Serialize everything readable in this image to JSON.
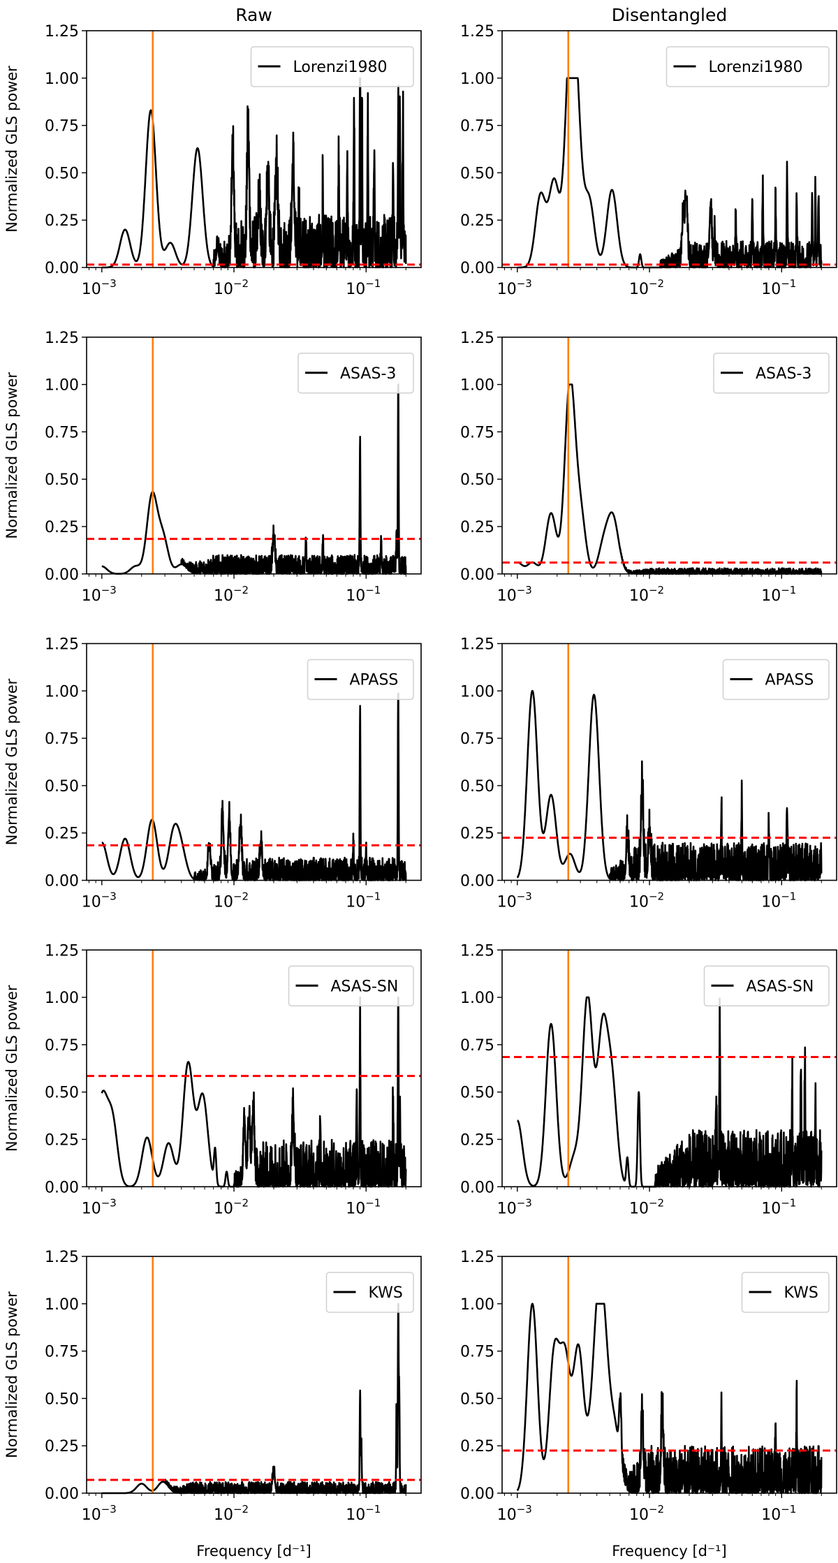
{
  "chart_data": {
    "type": "line",
    "layout": "5 rows x 2 columns",
    "column_titles": [
      "Raw",
      "Disentangled"
    ],
    "xlabel": "Frequency [d⁻¹]",
    "ylabel": "Normalized GLS power",
    "xscale": "log",
    "xlim": [
      0.000767,
      0.2606
    ],
    "ylim": [
      0,
      1.25
    ],
    "yticks": [
      "0.00",
      "0.25",
      "0.50",
      "0.75",
      "1.00",
      "1.25"
    ],
    "xticks": [
      {
        "base": "10",
        "exp": "−3"
      },
      {
        "base": "10",
        "exp": "−2"
      },
      {
        "base": "10",
        "exp": "−1"
      }
    ],
    "data_range": [
      0.001,
      0.2
    ],
    "reference_frequency": 0.00243,
    "colors": {
      "series": "#000000",
      "reference": "#ff7f0e",
      "threshold": "#ff0000"
    },
    "legend_placement": "top-right",
    "panels": [
      {
        "column": "Raw",
        "legend": "Lorenzi1980",
        "threshold": 0.015,
        "noise": {
          "start": 0.007,
          "level": 0.28
        },
        "peaks": [
          [
            0.0015,
            0.2
          ],
          [
            0.00235,
            0.83
          ],
          [
            0.0033,
            0.13
          ],
          [
            0.0053,
            0.63
          ],
          [
            0.0075,
            0.09
          ],
          [
            0.0098,
            0.59
          ],
          [
            0.0128,
            0.66
          ],
          [
            0.0155,
            0.28
          ],
          [
            0.018,
            0.45
          ],
          [
            0.021,
            0.47
          ],
          [
            0.028,
            0.5
          ],
          [
            0.031,
            0.38
          ],
          [
            0.047,
            0.37
          ],
          [
            0.062,
            0.46
          ],
          [
            0.072,
            0.55
          ],
          [
            0.081,
            0.82
          ],
          [
            0.09,
            1.0
          ],
          [
            0.093,
            0.89
          ],
          [
            0.103,
            0.68
          ],
          [
            0.115,
            0.53
          ],
          [
            0.16,
            0.48
          ],
          [
            0.175,
            0.78
          ],
          [
            0.18,
            0.84
          ],
          [
            0.19,
            0.7
          ]
        ]
      },
      {
        "column": "Disentangled",
        "legend": "Lorenzi1980",
        "threshold": 0.015,
        "noise": {
          "start": 0.012,
          "level": 0.14
        },
        "peaks": [
          [
            0.0015,
            0.38
          ],
          [
            0.0019,
            0.45
          ],
          [
            0.0025,
            1.0
          ],
          [
            0.0028,
            0.7
          ],
          [
            0.0035,
            0.35
          ],
          [
            0.0052,
            0.41
          ],
          [
            0.0085,
            0.07
          ],
          [
            0.018,
            0.26
          ],
          [
            0.019,
            0.37
          ],
          [
            0.029,
            0.3
          ],
          [
            0.031,
            0.17
          ],
          [
            0.045,
            0.23
          ],
          [
            0.06,
            0.36
          ],
          [
            0.072,
            0.42
          ],
          [
            0.09,
            0.33
          ],
          [
            0.11,
            0.45
          ],
          [
            0.13,
            0.3
          ],
          [
            0.17,
            0.27
          ],
          [
            0.18,
            0.39
          ],
          [
            0.19,
            0.35
          ]
        ]
      },
      {
        "column": "Raw",
        "legend": "ASAS-3",
        "threshold": 0.185,
        "noise": {
          "start": 0.004,
          "level": 0.1
        },
        "peaks": [
          [
            0.001,
            0.04
          ],
          [
            0.0018,
            0.04
          ],
          [
            0.0024,
            0.41
          ],
          [
            0.0029,
            0.19
          ],
          [
            0.004,
            0.05
          ],
          [
            0.02,
            0.17
          ],
          [
            0.035,
            0.17
          ],
          [
            0.047,
            0.16
          ],
          [
            0.09,
            0.68
          ],
          [
            0.13,
            0.16
          ],
          [
            0.17,
            0.22
          ],
          [
            0.175,
            1.0
          ]
        ]
      },
      {
        "column": "Disentangled",
        "legend": "ASAS-3",
        "threshold": 0.06,
        "noise": {
          "start": 0.006,
          "level": 0.03
        },
        "peaks": [
          [
            0.001,
            0.06
          ],
          [
            0.0013,
            0.06
          ],
          [
            0.0018,
            0.32
          ],
          [
            0.0025,
            1.0
          ],
          [
            0.003,
            0.31
          ],
          [
            0.0045,
            0.15
          ],
          [
            0.0052,
            0.22
          ],
          [
            0.0056,
            0.09
          ]
        ]
      },
      {
        "column": "Raw",
        "legend": "APASS",
        "threshold": 0.185,
        "noise": {
          "start": 0.005,
          "level": 0.12
        },
        "peaks": [
          [
            0.001,
            0.2
          ],
          [
            0.0015,
            0.22
          ],
          [
            0.0024,
            0.32
          ],
          [
            0.0035,
            0.24
          ],
          [
            0.004,
            0.14
          ],
          [
            0.0065,
            0.18
          ],
          [
            0.0082,
            0.32
          ],
          [
            0.0092,
            0.31
          ],
          [
            0.0112,
            0.27
          ],
          [
            0.016,
            0.16
          ],
          [
            0.08,
            0.18
          ],
          [
            0.09,
            0.88
          ],
          [
            0.1,
            0.15
          ],
          [
            0.175,
            1.0
          ]
        ]
      },
      {
        "column": "Disentangled",
        "legend": "APASS",
        "threshold": 0.225,
        "noise": {
          "start": 0.005,
          "level": 0.2
        },
        "peaks": [
          [
            0.0013,
            1.0
          ],
          [
            0.0018,
            0.45
          ],
          [
            0.0025,
            0.14
          ],
          [
            0.0038,
            0.98
          ],
          [
            0.0068,
            0.21
          ],
          [
            0.0088,
            0.44
          ],
          [
            0.01,
            0.2
          ],
          [
            0.035,
            0.33
          ],
          [
            0.05,
            0.36
          ],
          [
            0.08,
            0.27
          ],
          [
            0.11,
            0.36
          ]
        ]
      },
      {
        "column": "Raw",
        "legend": "ASAS-SN",
        "threshold": 0.585,
        "noise": {
          "start": 0.01,
          "level": 0.25
        },
        "peaks": [
          [
            0.001,
            0.45
          ],
          [
            0.0012,
            0.35
          ],
          [
            0.0022,
            0.26
          ],
          [
            0.0032,
            0.23
          ],
          [
            0.0045,
            0.65
          ],
          [
            0.0058,
            0.48
          ],
          [
            0.0072,
            0.18
          ],
          [
            0.0088,
            0.08
          ],
          [
            0.012,
            0.3
          ],
          [
            0.013,
            0.33
          ],
          [
            0.014,
            0.36
          ],
          [
            0.028,
            0.3
          ],
          [
            0.045,
            0.33
          ],
          [
            0.085,
            0.4
          ],
          [
            0.09,
            0.85
          ],
          [
            0.16,
            0.4
          ],
          [
            0.175,
            1.0
          ],
          [
            0.18,
            0.3
          ]
        ]
      },
      {
        "column": "Disentangled",
        "legend": "ASAS-SN",
        "threshold": 0.685,
        "noise": {
          "start": 0.011,
          "level": 0.3
        },
        "peaks": [
          [
            0.001,
            0.35
          ],
          [
            0.0018,
            0.86
          ],
          [
            0.0027,
            0.15
          ],
          [
            0.0034,
            1.0
          ],
          [
            0.0044,
            0.79
          ],
          [
            0.0052,
            0.52
          ],
          [
            0.0068,
            0.15
          ],
          [
            0.0083,
            0.5
          ],
          [
            0.032,
            0.44
          ],
          [
            0.034,
            0.86
          ],
          [
            0.12,
            0.48
          ],
          [
            0.14,
            0.55
          ],
          [
            0.15,
            0.62
          ],
          [
            0.18,
            0.4
          ]
        ]
      },
      {
        "column": "Raw",
        "legend": "KWS",
        "threshold": 0.07,
        "noise": {
          "start": 0.003,
          "level": 0.06
        },
        "peaks": [
          [
            0.002,
            0.05
          ],
          [
            0.0029,
            0.06
          ],
          [
            0.02,
            0.11
          ],
          [
            0.09,
            0.52
          ],
          [
            0.092,
            0.27
          ],
          [
            0.17,
            0.47
          ],
          [
            0.175,
            1.0
          ],
          [
            0.178,
            0.52
          ]
        ]
      },
      {
        "column": "Disentangled",
        "legend": "KWS",
        "threshold": 0.225,
        "noise": {
          "start": 0.006,
          "level": 0.25
        },
        "peaks": [
          [
            0.0013,
            1.0
          ],
          [
            0.0019,
            0.72
          ],
          [
            0.0023,
            0.68
          ],
          [
            0.0029,
            0.75
          ],
          [
            0.0036,
            0.2
          ],
          [
            0.0041,
            0.8
          ],
          [
            0.0046,
            0.56
          ],
          [
            0.0055,
            0.31
          ],
          [
            0.006,
            0.3
          ],
          [
            0.0088,
            0.35
          ],
          [
            0.0125,
            0.37
          ],
          [
            0.035,
            0.36
          ],
          [
            0.09,
            0.37
          ],
          [
            0.13,
            0.36
          ]
        ]
      }
    ]
  }
}
